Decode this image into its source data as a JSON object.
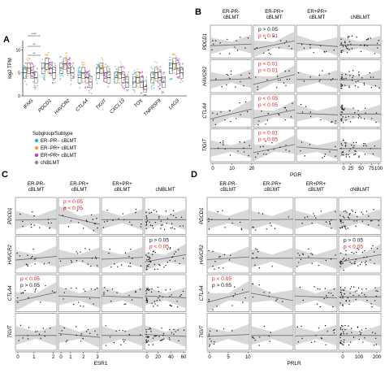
{
  "panel_letters": {
    "A": "A",
    "B": "B",
    "C": "C",
    "D": "D"
  },
  "legend": {
    "title": "Subgroup/Subtype",
    "items": [
      {
        "label": "ER−PR− cBLMT",
        "color": "#2fb3b3"
      },
      {
        "label": "ER−PR+ cBLMT",
        "color": "#e8a13a"
      },
      {
        "label": "ER+PR+ cBLMT",
        "color": "#c637c6"
      },
      {
        "label": "cNBLMT",
        "color": "#8a8a8a"
      }
    ]
  },
  "colors": {
    "red": "#e0201b",
    "black": "#111111",
    "band": "#c8c8c8",
    "line": "#666666"
  },
  "chart_data": [
    {
      "panel": "A",
      "type": "box+strip",
      "ylabel": "log2 TPM",
      "categories": [
        "IFNG",
        "PDCD1",
        "HAVCR2",
        "CTLA4",
        "TIGIT",
        "CXCL13",
        "TOX",
        "TNFRSF9",
        "LAG3"
      ],
      "ylim": [
        0,
        12
      ],
      "yticks": [
        0,
        5,
        10
      ],
      "series_medians": [
        {
          "name": "ER−PR− cBLMT",
          "values": [
            5,
            6,
            6,
            4,
            5,
            4,
            3,
            4,
            6
          ]
        },
        {
          "name": "ER−PR+ cBLMT",
          "values": [
            6,
            7,
            7,
            5,
            6,
            5,
            4,
            5,
            7
          ]
        },
        {
          "name": "ER+PR+ cBLMT",
          "values": [
            5,
            6,
            6,
            4,
            5,
            4,
            3,
            4,
            6
          ]
        },
        {
          "name": "cNBLMT",
          "values": [
            4,
            5,
            5,
            3,
            4,
            3,
            2,
            3,
            5
          ]
        }
      ],
      "significance_marks": [
        "****",
        "**",
        "**"
      ]
    },
    {
      "panel": "B",
      "type": "scatter-regression-grid",
      "columns": [
        "ER-PR-\ncBLMT",
        "ER-PR+\ncBLMT",
        "ER+PR+\ncBLMT",
        "cNBLMT"
      ],
      "rows": [
        "PDCD1",
        "HAVCR2",
        "CTLA4",
        "TIGIT"
      ],
      "xlabel": "PGR",
      "xticks": [
        "0",
        "10",
        "20",
        "0",
        "25",
        "50",
        "75",
        "100"
      ],
      "annotations": [
        {
          "row": 0,
          "col": 1,
          "lines": [
            {
              "text": "p > 0.05",
              "color": "black"
            },
            {
              "text": "p < 0.01",
              "color": "red"
            }
          ]
        },
        {
          "row": 1,
          "col": 1,
          "lines": [
            {
              "text": "p < 0.01",
              "color": "red"
            },
            {
              "text": "p < 0.01",
              "color": "red"
            }
          ]
        },
        {
          "row": 2,
          "col": 1,
          "lines": [
            {
              "text": "p < 0.05",
              "color": "red"
            },
            {
              "text": "p < 0.05",
              "color": "red"
            }
          ]
        },
        {
          "row": 3,
          "col": 1,
          "lines": [
            {
              "text": "p < 0.01",
              "color": "red"
            },
            {
              "text": "p < 0.05",
              "color": "red"
            }
          ]
        }
      ]
    },
    {
      "panel": "C",
      "type": "scatter-regression-grid",
      "columns": [
        "ER-PR-\ncBLMT",
        "ER-PR+\ncBLMT",
        "ER+PR+\ncBLMT",
        "cNBLMT"
      ],
      "rows": [
        "PDCD1",
        "HAVCR2",
        "CTLA4",
        "TIGIT"
      ],
      "xlabel": "ESR1",
      "xticks": [
        "0",
        "1",
        "2",
        "0",
        "1",
        "2",
        "3",
        "0",
        "20",
        "40",
        "60"
      ],
      "annotations": [
        {
          "row": 0,
          "col": 1,
          "lines": [
            {
              "text": "p < 0.05",
              "color": "red"
            },
            {
              "text": "p < 0.05",
              "color": "red"
            }
          ]
        },
        {
          "row": 1,
          "col": 3,
          "lines": [
            {
              "text": "p > 0.05",
              "color": "black"
            },
            {
              "text": "p < 0.05",
              "color": "red"
            }
          ]
        },
        {
          "row": 2,
          "col": 0,
          "lines": [
            {
              "text": "p < 0.05",
              "color": "red"
            },
            {
              "text": "p > 0.05",
              "color": "black"
            }
          ]
        }
      ]
    },
    {
      "panel": "D",
      "type": "scatter-regression-grid",
      "columns": [
        "ER-PR-\ncBLMT",
        "ER-PR+\ncBLMT",
        "ER+PR+\ncBLMT",
        "cNBLMT"
      ],
      "rows": [
        "PDCD1",
        "HAVCR2",
        "CTLA4",
        "TIGIT"
      ],
      "xlabel": "PRLR",
      "xticks": [
        "0",
        "5",
        "10",
        "0",
        "100",
        "200"
      ],
      "annotations": [
        {
          "row": 1,
          "col": 3,
          "lines": [
            {
              "text": "p > 0.05",
              "color": "black"
            },
            {
              "text": "p < 0.05",
              "color": "red"
            }
          ]
        },
        {
          "row": 2,
          "col": 0,
          "lines": [
            {
              "text": "p < 0.05",
              "color": "red"
            },
            {
              "text": "p > 0.05",
              "color": "black"
            }
          ]
        }
      ]
    }
  ]
}
